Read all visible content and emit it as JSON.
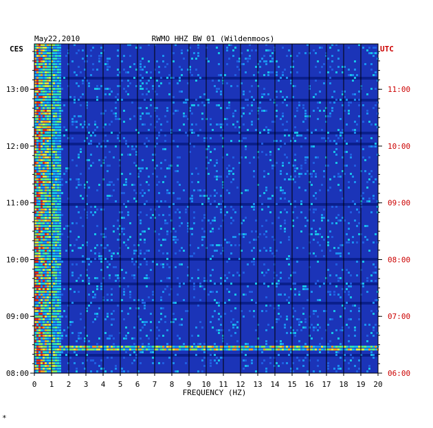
{
  "chart_data": {
    "type": "heatmap",
    "title_left": "May22,2010",
    "title": "RWMO HHZ BW 01 (Wildenmoos)",
    "left_axis_label": "CES",
    "right_axis_label": "UTC",
    "xlabel": "FREQUENCY (HZ)",
    "xlim": [
      0,
      20
    ],
    "x_ticks": [
      "0",
      "1",
      "2",
      "3",
      "4",
      "5",
      "6",
      "7",
      "8",
      "9",
      "10",
      "11",
      "12",
      "13",
      "14",
      "15",
      "16",
      "17",
      "18",
      "19",
      "20"
    ],
    "left_time_ticks": [
      "13:00",
      "12:00",
      "11:00",
      "10:00",
      "09:00",
      "08:00"
    ],
    "right_time_ticks": [
      "11:00",
      "10:00",
      "09:00",
      "08:00",
      "07:00",
      "06:00"
    ],
    "time_range_local": [
      "08:00",
      "13:48"
    ],
    "footnote": "ₒ",
    "colors": {
      "background": "#1b34b8",
      "low_energy": "#0a1f8c",
      "utc_color": "#cc0000",
      "text": "#000000",
      "grid": "#000000"
    },
    "features": [
      {
        "desc": "strong broadband band",
        "time_local": "08:28",
        "freq_range": [
          1.3,
          20
        ]
      },
      {
        "desc": "high energy",
        "freq_range": [
          0,
          1.5
        ]
      }
    ]
  },
  "corner_mark": "*"
}
